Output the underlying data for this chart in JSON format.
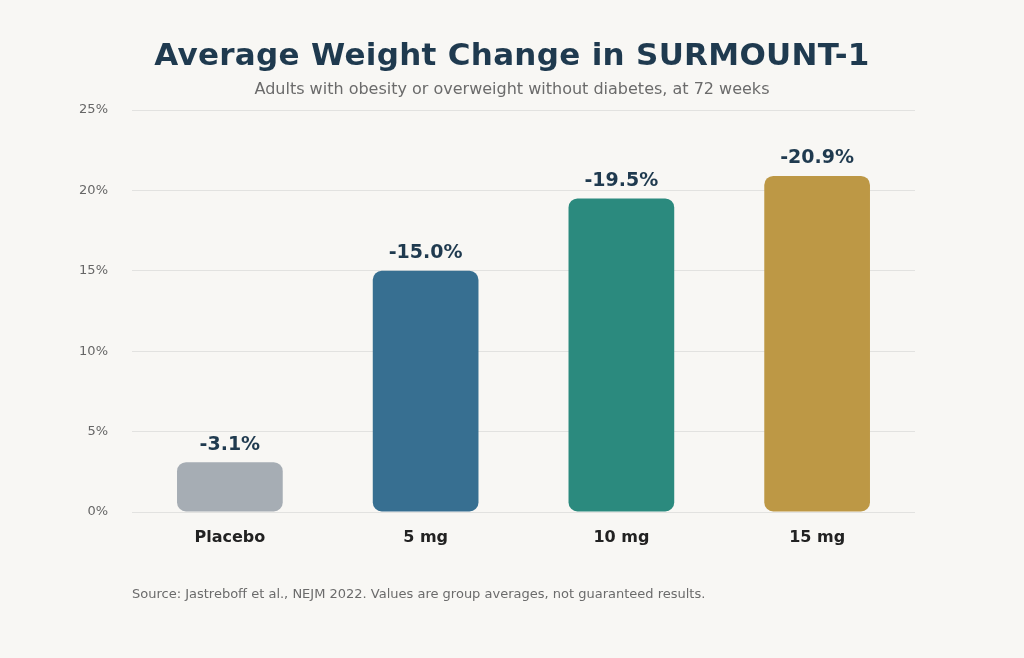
{
  "chart_data": {
    "type": "bar",
    "title": "Average Weight Change in SURMOUNT-1",
    "subtitle": "Adults with obesity or overweight without diabetes, at 72 weeks",
    "annotations": [
      "Source: Jastreboff et al., NEJM 2022. Values are group averages, not guaranteed results."
    ],
    "categories": [
      "Placebo",
      "5 mg",
      "10 mg",
      "15 mg"
    ],
    "values": [
      -3.1,
      -15.0,
      -19.5,
      -20.9
    ],
    "colors": [
      "#a6adb4",
      "#376f91",
      "#2b8a7e",
      "#bd9845"
    ],
    "value_labels": [
      "-3.1%",
      "-15.0%",
      "-19.5%",
      "-20.9%"
    ],
    "ylim": [
      0,
      -25
    ],
    "yticks": [
      {
        "value": 0,
        "label": "0%"
      },
      {
        "value": -5,
        "label": "5%"
      },
      {
        "value": -10,
        "label": "10%"
      },
      {
        "value": -15,
        "label": "15%"
      },
      {
        "value": -20,
        "label": "20%"
      },
      {
        "value": -25,
        "label": "25%"
      }
    ],
    "grid": "y"
  }
}
